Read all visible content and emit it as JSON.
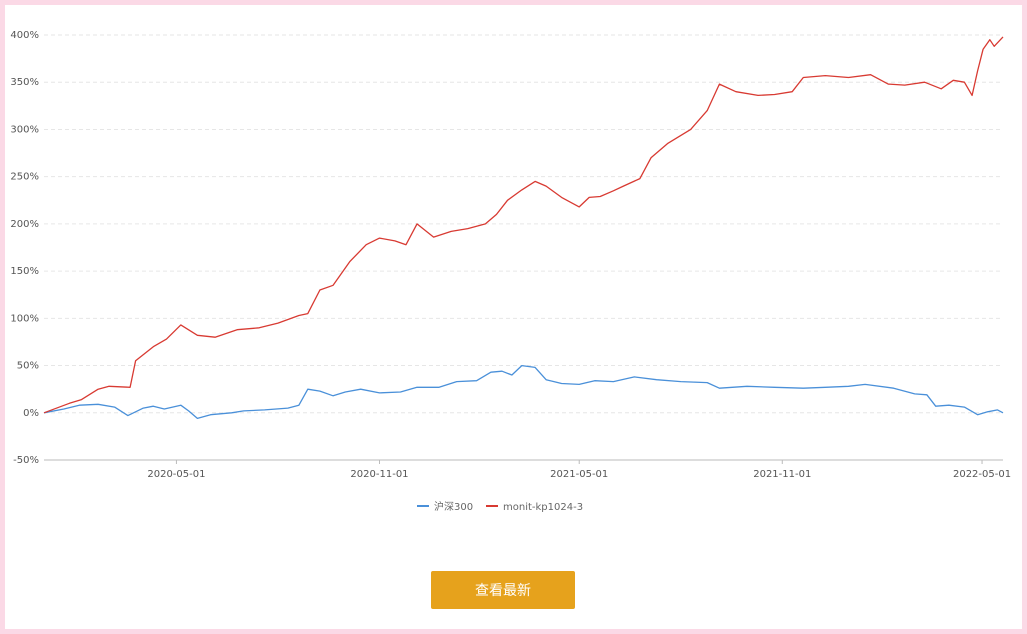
{
  "chart_data": {
    "type": "line",
    "y_ticks": [
      "400%",
      "350%",
      "300%",
      "250%",
      "200%",
      "150%",
      "100%",
      "50%",
      "0%",
      "-50%"
    ],
    "y_range": [
      -50,
      400
    ],
    "x_ticks": [
      "2020-05-01",
      "2020-11-01",
      "2021-05-01",
      "2021-11-01",
      "2022-05-01"
    ],
    "x_range": [
      "2020-01-02",
      "2022-05-20"
    ],
    "grid": "horizontal dashed",
    "legend_position": "bottom-center",
    "series": [
      {
        "name": "沪深300",
        "color": "#4a90d9",
        "points": [
          [
            "2020-01-02",
            0
          ],
          [
            "2020-01-20",
            4
          ],
          [
            "2020-02-03",
            8
          ],
          [
            "2020-02-20",
            9
          ],
          [
            "2020-03-06",
            6
          ],
          [
            "2020-03-18",
            -3
          ],
          [
            "2020-04-01",
            5
          ],
          [
            "2020-04-10",
            7
          ],
          [
            "2020-04-20",
            4
          ],
          [
            "2020-05-05",
            8
          ],
          [
            "2020-05-12",
            2
          ],
          [
            "2020-05-20",
            -6
          ],
          [
            "2020-06-01",
            -2
          ],
          [
            "2020-06-20",
            0
          ],
          [
            "2020-07-01",
            2
          ],
          [
            "2020-07-20",
            3
          ],
          [
            "2020-08-10",
            5
          ],
          [
            "2020-08-20",
            8
          ],
          [
            "2020-08-28",
            25
          ],
          [
            "2020-09-08",
            23
          ],
          [
            "2020-09-20",
            18
          ],
          [
            "2020-10-01",
            22
          ],
          [
            "2020-10-15",
            25
          ],
          [
            "2020-11-01",
            21
          ],
          [
            "2020-11-20",
            22
          ],
          [
            "2020-12-05",
            27
          ],
          [
            "2020-12-25",
            27
          ],
          [
            "2021-01-10",
            33
          ],
          [
            "2021-01-28",
            34
          ],
          [
            "2021-02-10",
            43
          ],
          [
            "2021-02-20",
            44
          ],
          [
            "2021-03-01",
            40
          ],
          [
            "2021-03-10",
            50
          ],
          [
            "2021-03-22",
            48
          ],
          [
            "2021-04-01",
            35
          ],
          [
            "2021-04-15",
            31
          ],
          [
            "2021-05-01",
            30
          ],
          [
            "2021-05-15",
            34
          ],
          [
            "2021-06-01",
            33
          ],
          [
            "2021-06-20",
            38
          ],
          [
            "2021-07-10",
            35
          ],
          [
            "2021-08-01",
            33
          ],
          [
            "2021-08-25",
            32
          ],
          [
            "2021-09-05",
            26
          ],
          [
            "2021-09-30",
            28
          ],
          [
            "2021-10-25",
            27
          ],
          [
            "2021-11-20",
            26
          ],
          [
            "2021-12-10",
            27
          ],
          [
            "2021-12-31",
            28
          ],
          [
            "2022-01-15",
            30
          ],
          [
            "2022-02-10",
            26
          ],
          [
            "2022-03-01",
            20
          ],
          [
            "2022-03-12",
            19
          ],
          [
            "2022-03-20",
            7
          ],
          [
            "2022-04-01",
            8
          ],
          [
            "2022-04-15",
            6
          ],
          [
            "2022-04-27",
            -2
          ],
          [
            "2022-05-06",
            1
          ],
          [
            "2022-05-15",
            3
          ],
          [
            "2022-05-20",
            0
          ]
        ]
      },
      {
        "name": "monit-kp1024-3",
        "color": "#d83a32",
        "points": [
          [
            "2020-01-02",
            0
          ],
          [
            "2020-01-25",
            10
          ],
          [
            "2020-02-05",
            14
          ],
          [
            "2020-02-20",
            25
          ],
          [
            "2020-03-01",
            28
          ],
          [
            "2020-03-20",
            27
          ],
          [
            "2020-03-25",
            55
          ],
          [
            "2020-04-10",
            70
          ],
          [
            "2020-04-22",
            78
          ],
          [
            "2020-05-05",
            93
          ],
          [
            "2020-05-20",
            82
          ],
          [
            "2020-06-05",
            80
          ],
          [
            "2020-06-25",
            88
          ],
          [
            "2020-07-15",
            90
          ],
          [
            "2020-08-01",
            95
          ],
          [
            "2020-08-20",
            103
          ],
          [
            "2020-08-28",
            105
          ],
          [
            "2020-09-08",
            130
          ],
          [
            "2020-09-20",
            135
          ],
          [
            "2020-10-05",
            160
          ],
          [
            "2020-10-20",
            178
          ],
          [
            "2020-11-01",
            185
          ],
          [
            "2020-11-15",
            182
          ],
          [
            "2020-11-25",
            178
          ],
          [
            "2020-12-05",
            200
          ],
          [
            "2020-12-20",
            186
          ],
          [
            "2021-01-05",
            192
          ],
          [
            "2021-01-20",
            195
          ],
          [
            "2021-02-05",
            200
          ],
          [
            "2021-02-15",
            210
          ],
          [
            "2021-02-25",
            225
          ],
          [
            "2021-03-10",
            236
          ],
          [
            "2021-03-22",
            245
          ],
          [
            "2021-04-01",
            240
          ],
          [
            "2021-04-15",
            228
          ],
          [
            "2021-05-01",
            218
          ],
          [
            "2021-05-10",
            228
          ],
          [
            "2021-05-20",
            229
          ],
          [
            "2021-06-01",
            235
          ],
          [
            "2021-06-10",
            240
          ],
          [
            "2021-06-25",
            248
          ],
          [
            "2021-07-05",
            270
          ],
          [
            "2021-07-20",
            285
          ],
          [
            "2021-08-10",
            300
          ],
          [
            "2021-08-25",
            320
          ],
          [
            "2021-09-05",
            348
          ],
          [
            "2021-09-20",
            340
          ],
          [
            "2021-10-10",
            336
          ],
          [
            "2021-10-25",
            337
          ],
          [
            "2021-11-10",
            340
          ],
          [
            "2021-11-20",
            355
          ],
          [
            "2021-12-10",
            357
          ],
          [
            "2021-12-31",
            355
          ],
          [
            "2022-01-20",
            358
          ],
          [
            "2022-02-05",
            348
          ],
          [
            "2022-02-20",
            347
          ],
          [
            "2022-03-10",
            350
          ],
          [
            "2022-03-25",
            343
          ],
          [
            "2022-04-05",
            352
          ],
          [
            "2022-04-15",
            350
          ],
          [
            "2022-04-22",
            336
          ],
          [
            "2022-04-27",
            362
          ],
          [
            "2022-05-02",
            385
          ],
          [
            "2022-05-08",
            395
          ],
          [
            "2022-05-12",
            388
          ],
          [
            "2022-05-20",
            398
          ]
        ]
      }
    ]
  },
  "legend": {
    "items": [
      {
        "label": "沪深300",
        "color": "#4a90d9"
      },
      {
        "label": "monit-kp1024-3",
        "color": "#d83a32"
      }
    ]
  },
  "button": {
    "label": "查看最新",
    "color": "#e6a21c"
  }
}
